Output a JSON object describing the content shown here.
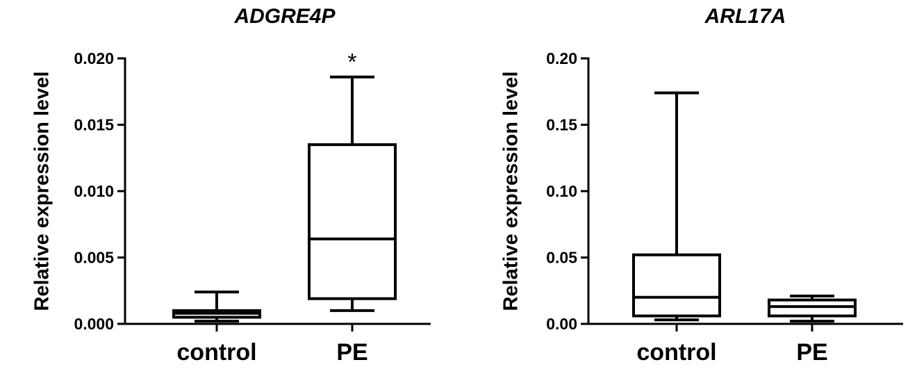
{
  "chart_data": [
    {
      "type": "box",
      "title": "ADGRE4P",
      "ylabel": "Relative expression level",
      "xlabel": "",
      "ylim": [
        0,
        0.02
      ],
      "yticks": [
        "0.000",
        "0.005",
        "0.010",
        "0.015",
        "0.020"
      ],
      "ytick_values": [
        0,
        0.005,
        0.01,
        0.015,
        0.02
      ],
      "categories": [
        "control",
        "PE"
      ],
      "boxes": [
        {
          "category": "control",
          "min": 0.0002,
          "q1": 0.0005,
          "median": 0.0008,
          "q3": 0.001,
          "max": 0.0024,
          "annotation": ""
        },
        {
          "category": "PE",
          "min": 0.001,
          "q1": 0.0019,
          "median": 0.0064,
          "q3": 0.0135,
          "max": 0.0186,
          "annotation": "*"
        }
      ],
      "color": "#000000",
      "grid": false
    },
    {
      "type": "box",
      "title": "ARL17A",
      "ylabel": "Relative expression level",
      "xlabel": "",
      "ylim": [
        0,
        0.2
      ],
      "yticks": [
        "0.00",
        "0.05",
        "0.10",
        "0.15",
        "0.20"
      ],
      "ytick_values": [
        0,
        0.05,
        0.1,
        0.15,
        0.2
      ],
      "categories": [
        "control",
        "PE"
      ],
      "boxes": [
        {
          "category": "control",
          "min": 0.003,
          "q1": 0.006,
          "median": 0.02,
          "q3": 0.052,
          "max": 0.174,
          "annotation": ""
        },
        {
          "category": "PE",
          "min": 0.002,
          "q1": 0.006,
          "median": 0.013,
          "q3": 0.018,
          "max": 0.021,
          "annotation": ""
        }
      ],
      "color": "#000000",
      "grid": false
    }
  ]
}
